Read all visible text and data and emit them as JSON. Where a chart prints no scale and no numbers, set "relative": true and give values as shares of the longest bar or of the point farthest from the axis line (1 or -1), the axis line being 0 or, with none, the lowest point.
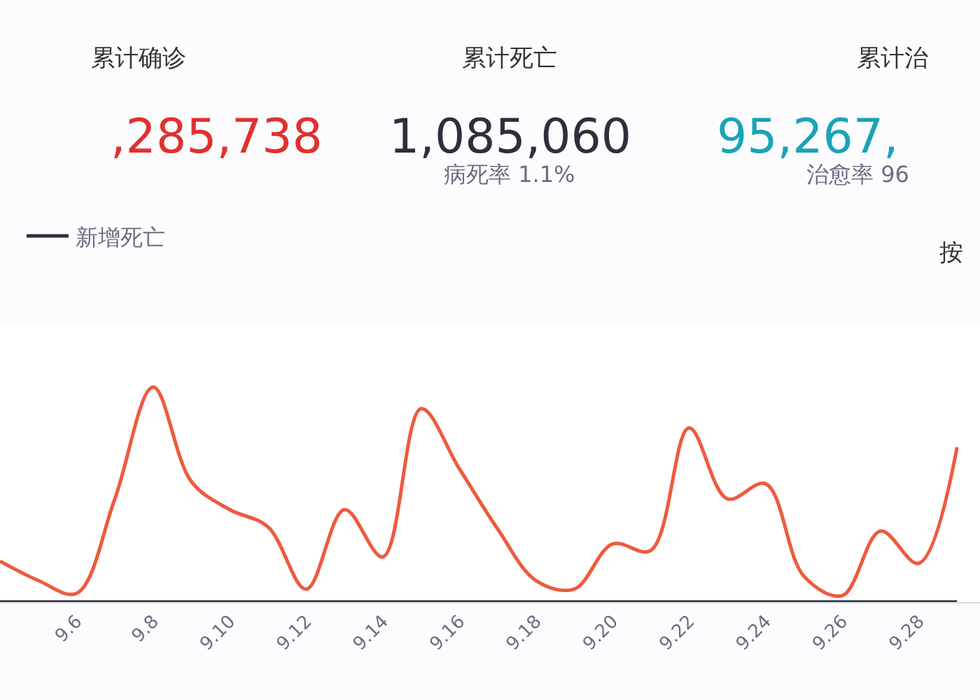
{
  "chart_data": {
    "type": "line",
    "relative": true,
    "legend": "top left",
    "marker": "none",
    "line_style": "solid",
    "categories": [
      null,
      null,
      "9.6",
      null,
      "9.8",
      null,
      "9.10",
      null,
      "9.12",
      null,
      "9.14",
      null,
      "9.16",
      null,
      "9.18",
      null,
      "9.20",
      null,
      "9.22",
      null,
      "9.24",
      null,
      "9.26",
      null,
      "9.28",
      null
    ],
    "series": [
      {
        "color": "#ee5a3f",
        "values": [
          0.19,
          0.1,
          0.04,
          0.48,
          1.0,
          0.56,
          0.43,
          0.35,
          0.06,
          0.43,
          0.21,
          0.9,
          0.62,
          0.34,
          0.1,
          0.06,
          0.27,
          0.24,
          0.81,
          0.48,
          0.55,
          0.12,
          0.03,
          0.33,
          0.18,
          0.72
        ]
      },
      {
        "name": "新增死亡",
        "color": "#2d303c",
        "values": [
          0,
          0,
          0,
          0,
          0,
          0,
          0,
          0,
          0,
          0,
          0,
          0,
          0,
          0,
          0,
          0,
          0,
          0,
          0,
          0,
          0,
          0,
          0,
          0,
          0,
          0
        ]
      }
    ],
    "annotations": [
      "累计确诊",
      ",285,738",
      "累计死亡",
      "1,085,060",
      "病死率 1.1%",
      "累计治",
      "95,267,",
      "治愈率 96",
      "按"
    ]
  }
}
